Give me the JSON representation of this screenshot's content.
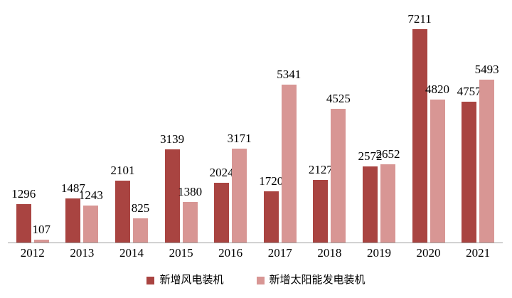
{
  "chart_data": {
    "type": "bar",
    "title": "",
    "xlabel": "",
    "ylabel": "",
    "categories": [
      "2012",
      "2013",
      "2014",
      "2015",
      "2016",
      "2017",
      "2018",
      "2019",
      "2020",
      "2021"
    ],
    "series": [
      {
        "name": "新增风电装机",
        "color": "#A94441",
        "values": [
          1296,
          1487,
          2101,
          3139,
          2024,
          1720,
          2127,
          2572,
          7211,
          4757
        ]
      },
      {
        "name": "新增太阳能发电装机",
        "color": "#D89694",
        "values": [
          107,
          1243,
          825,
          1380,
          3171,
          5341,
          4525,
          2652,
          4820,
          5493
        ]
      }
    ],
    "ylim": [
      0,
      7600
    ],
    "value_labels": true,
    "grid": false,
    "y_axis_visible": false,
    "legend_position": "bottom",
    "axis_line_color": "#9D9D9D",
    "text_color": "#000000",
    "background": "#FFFFFF"
  }
}
